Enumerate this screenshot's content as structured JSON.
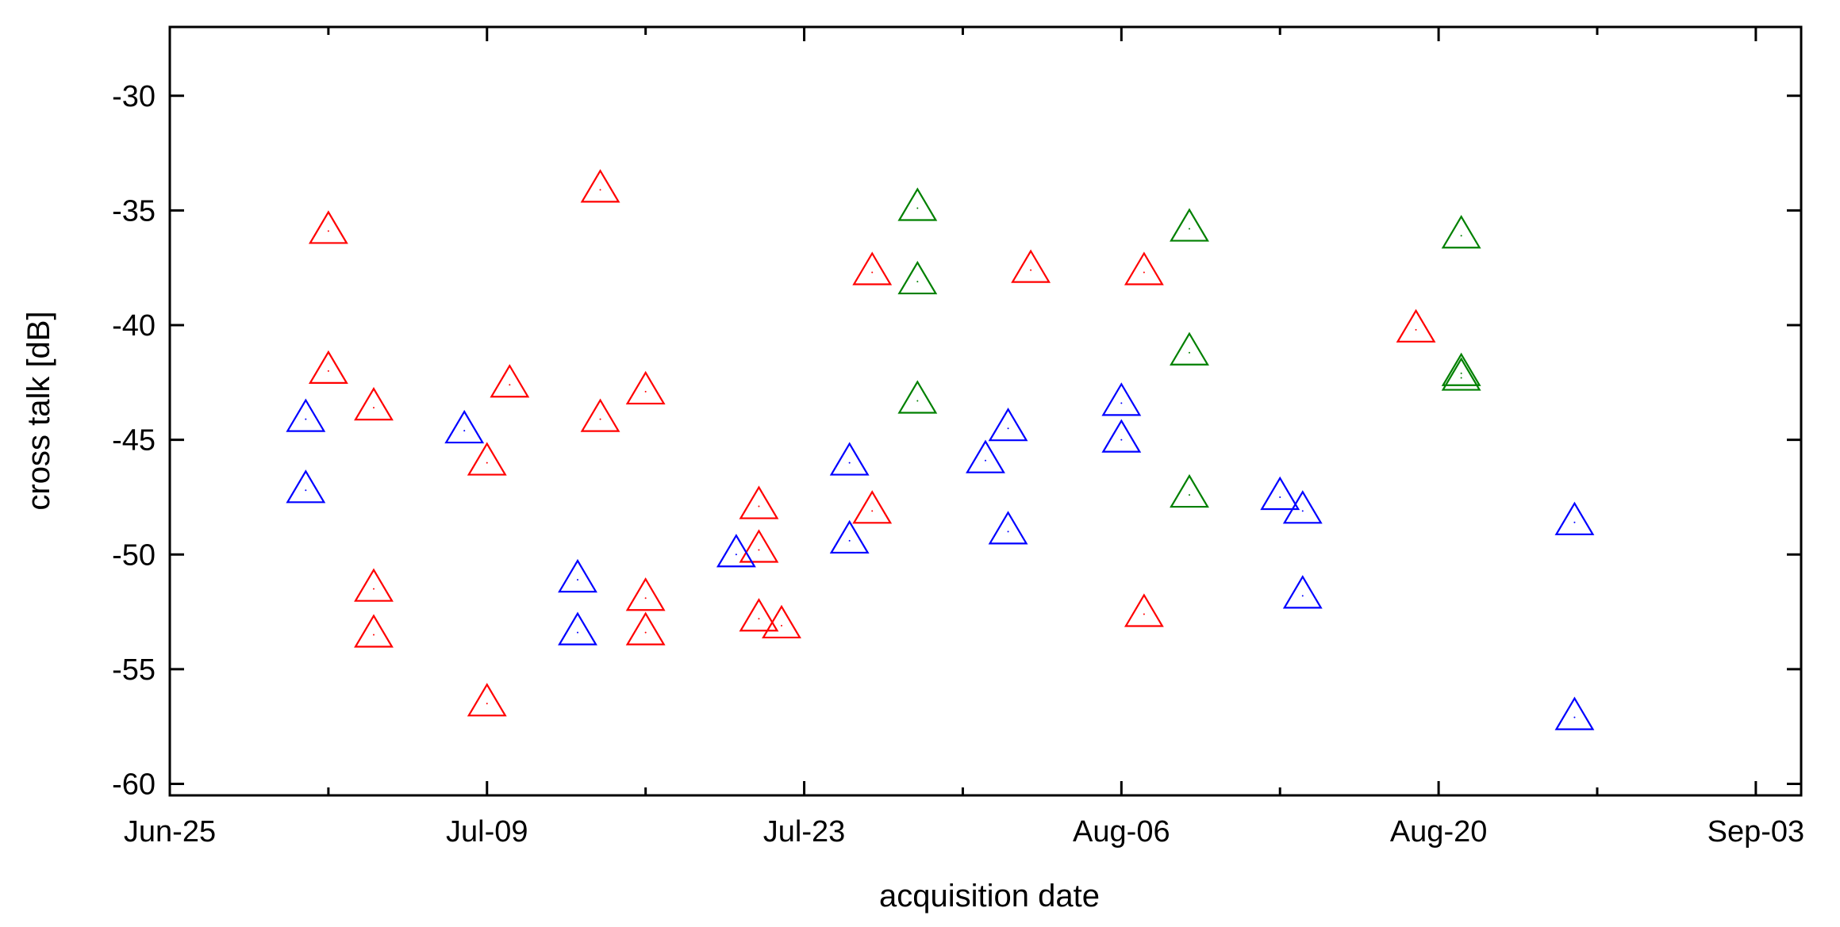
{
  "chart_data": {
    "type": "scatter",
    "title": "",
    "xlabel": "acquisition date",
    "ylabel": "cross talk [dB]",
    "x_ticks": [
      "Jun-25",
      "Jul-09",
      "Jul-23",
      "Aug-06",
      "Aug-20",
      "Sep-03"
    ],
    "x_range": [
      "Jun-25",
      "Sep-05"
    ],
    "y_ticks": [
      -30,
      -35,
      -40,
      -45,
      -50,
      -55,
      -60
    ],
    "ylim": [
      -60.5,
      -27.0
    ],
    "grid": false,
    "legend": "none",
    "marker": "open-triangle",
    "series": [
      {
        "color": "#ff0000",
        "points": [
          {
            "x": "Jul-02",
            "y": -35.9
          },
          {
            "x": "Jul-02",
            "y": -42.0
          },
          {
            "x": "Jul-04",
            "y": -43.6
          },
          {
            "x": "Jul-04",
            "y": -51.5
          },
          {
            "x": "Jul-04",
            "y": -53.5
          },
          {
            "x": "Jul-09",
            "y": -46.0
          },
          {
            "x": "Jul-09",
            "y": -56.5
          },
          {
            "x": "Jul-10",
            "y": -42.6
          },
          {
            "x": "Jul-14",
            "y": -34.1
          },
          {
            "x": "Jul-14",
            "y": -44.1
          },
          {
            "x": "Jul-16",
            "y": -42.9
          },
          {
            "x": "Jul-16",
            "y": -51.9
          },
          {
            "x": "Jul-16",
            "y": -53.4
          },
          {
            "x": "Jul-21",
            "y": -47.9
          },
          {
            "x": "Jul-21",
            "y": -49.8
          },
          {
            "x": "Jul-21",
            "y": -52.8
          },
          {
            "x": "Jul-22",
            "y": -53.1
          },
          {
            "x": "Jul-26",
            "y": -37.7
          },
          {
            "x": "Jul-26",
            "y": -48.1
          },
          {
            "x": "Aug-02",
            "y": -37.6
          },
          {
            "x": "Aug-07",
            "y": -37.7
          },
          {
            "x": "Aug-07",
            "y": -52.6
          },
          {
            "x": "Aug-19",
            "y": -40.2
          }
        ]
      },
      {
        "color": "#0000ff",
        "points": [
          {
            "x": "Jul-01",
            "y": -44.1
          },
          {
            "x": "Jul-01",
            "y": -47.2
          },
          {
            "x": "Jul-08",
            "y": -44.6
          },
          {
            "x": "Jul-13",
            "y": -51.1
          },
          {
            "x": "Jul-13",
            "y": -53.4
          },
          {
            "x": "Jul-20",
            "y": -50.0
          },
          {
            "x": "Jul-25",
            "y": -46.0
          },
          {
            "x": "Jul-25",
            "y": -49.4
          },
          {
            "x": "Jul-31",
            "y": -45.9
          },
          {
            "x": "Aug-01",
            "y": -44.5
          },
          {
            "x": "Aug-01",
            "y": -49.0
          },
          {
            "x": "Aug-06",
            "y": -43.4
          },
          {
            "x": "Aug-06",
            "y": -45.0
          },
          {
            "x": "Aug-13",
            "y": -47.5
          },
          {
            "x": "Aug-14",
            "y": -48.1
          },
          {
            "x": "Aug-14",
            "y": -51.8
          },
          {
            "x": "Aug-26",
            "y": -48.6
          },
          {
            "x": "Aug-26",
            "y": -57.1
          }
        ]
      },
      {
        "color": "#008000",
        "points": [
          {
            "x": "Jul-28",
            "y": -34.9
          },
          {
            "x": "Jul-28",
            "y": -38.1
          },
          {
            "x": "Jul-28",
            "y": -43.3
          },
          {
            "x": "Aug-09",
            "y": -35.8
          },
          {
            "x": "Aug-09",
            "y": -41.2
          },
          {
            "x": "Aug-09",
            "y": -47.4
          },
          {
            "x": "Aug-21",
            "y": -36.1
          },
          {
            "x": "Aug-21",
            "y": -42.1
          },
          {
            "x": "Aug-21",
            "y": -42.3
          }
        ]
      }
    ]
  }
}
